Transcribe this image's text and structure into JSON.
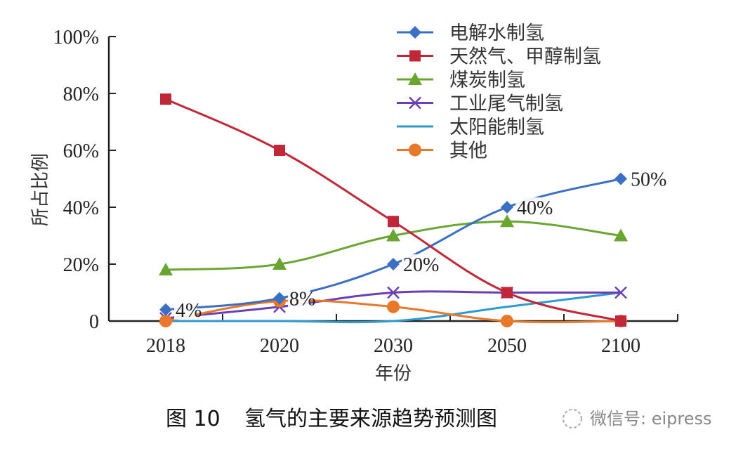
{
  "chart_data": {
    "type": "line",
    "title": "",
    "caption": {
      "figure_number": "图 10",
      "text": "氢气的主要来源趋势预测图"
    },
    "watermark": "微信号: eipress",
    "xlabel": "年份",
    "ylabel": "所占比例",
    "categories": [
      "2018",
      "2020",
      "2030",
      "2050",
      "2100"
    ],
    "ylim": [
      0,
      100
    ],
    "yticks": [
      {
        "value": 0,
        "label": "0"
      },
      {
        "value": 20,
        "label": "20%"
      },
      {
        "value": 40,
        "label": "40%"
      },
      {
        "value": 60,
        "label": "60%"
      },
      {
        "value": 80,
        "label": "80%"
      },
      {
        "value": 100,
        "label": "100%"
      }
    ],
    "grid": false,
    "legend_position": "top-right",
    "series": [
      {
        "name": "电解水制氢",
        "color": "#3a6fc4",
        "marker": "diamond",
        "values": [
          4,
          8,
          20,
          40,
          50
        ],
        "data_labels": [
          "4%",
          "8%",
          "20%",
          "40%",
          "50%"
        ]
      },
      {
        "name": "天然气、甲醇制氢",
        "color": "#c0283a",
        "marker": "square",
        "values": [
          78,
          60,
          35,
          10,
          0
        ]
      },
      {
        "name": "煤炭制氢",
        "color": "#6aa531",
        "marker": "triangle",
        "values": [
          18,
          20,
          30,
          35,
          30
        ]
      },
      {
        "name": "工业尾气制氢",
        "color": "#6a3fb5",
        "marker": "x",
        "values": [
          1,
          5,
          10,
          10,
          10
        ]
      },
      {
        "name": "太阳能制氢",
        "color": "#2e9ad0",
        "marker": "none",
        "values": [
          0,
          0,
          0,
          5,
          10
        ]
      },
      {
        "name": "其他",
        "color": "#e8782a",
        "marker": "circle",
        "values": [
          0,
          7,
          5,
          0,
          0
        ]
      }
    ]
  }
}
